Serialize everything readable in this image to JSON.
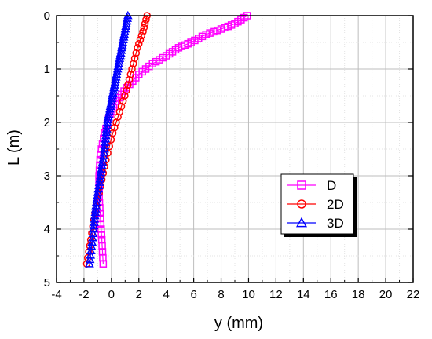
{
  "chart_data": {
    "type": "line",
    "title": "",
    "xlabel": "y (mm)",
    "ylabel": "L (m)",
    "xlim": [
      -4,
      22
    ],
    "ylim": [
      0,
      5
    ],
    "y_inverted": true,
    "x_position": "bottom",
    "x_ticks": [
      -4,
      -2,
      0,
      2,
      4,
      6,
      8,
      10,
      12,
      14,
      16,
      18,
      20,
      22
    ],
    "y_ticks": [
      0,
      1,
      2,
      3,
      4,
      5
    ],
    "grid": true,
    "legend_position": "right-middle",
    "series": [
      {
        "name": "D",
        "color": "#ff00ff",
        "marker": "square",
        "points": [
          [
            9.9,
            0.0
          ],
          [
            9.0,
            0.15
          ],
          [
            8.0,
            0.25
          ],
          [
            6.9,
            0.35
          ],
          [
            5.8,
            0.5
          ],
          [
            4.9,
            0.6
          ],
          [
            4.0,
            0.75
          ],
          [
            3.0,
            0.9
          ],
          [
            2.0,
            1.1
          ],
          [
            1.1,
            1.35
          ],
          [
            0.4,
            1.6
          ],
          [
            -0.1,
            1.85
          ],
          [
            -0.5,
            2.2
          ],
          [
            -0.8,
            2.6
          ],
          [
            -0.9,
            3.0
          ],
          [
            -0.9,
            3.4
          ],
          [
            -0.8,
            3.8
          ],
          [
            -0.7,
            4.2
          ],
          [
            -0.6,
            4.65
          ]
        ]
      },
      {
        "name": "2D",
        "color": "#ff0000",
        "marker": "circle",
        "points": [
          [
            2.6,
            0.0
          ],
          [
            2.3,
            0.3
          ],
          [
            1.9,
            0.6
          ],
          [
            1.5,
            1.0
          ],
          [
            1.1,
            1.4
          ],
          [
            0.6,
            1.8
          ],
          [
            0.1,
            2.2
          ],
          [
            -0.4,
            2.7
          ],
          [
            -0.8,
            3.2
          ],
          [
            -1.2,
            3.7
          ],
          [
            -1.5,
            4.2
          ],
          [
            -1.8,
            4.65
          ]
        ]
      },
      {
        "name": "3D",
        "color": "#0000ff",
        "marker": "triangle",
        "points": [
          [
            1.2,
            0.0
          ],
          [
            0.9,
            0.4
          ],
          [
            0.6,
            0.8
          ],
          [
            0.3,
            1.2
          ],
          [
            0.0,
            1.6
          ],
          [
            -0.3,
            2.0
          ],
          [
            -0.5,
            2.5
          ],
          [
            -0.8,
            3.0
          ],
          [
            -1.1,
            3.5
          ],
          [
            -1.3,
            4.0
          ],
          [
            -1.6,
            4.65
          ]
        ]
      }
    ]
  }
}
